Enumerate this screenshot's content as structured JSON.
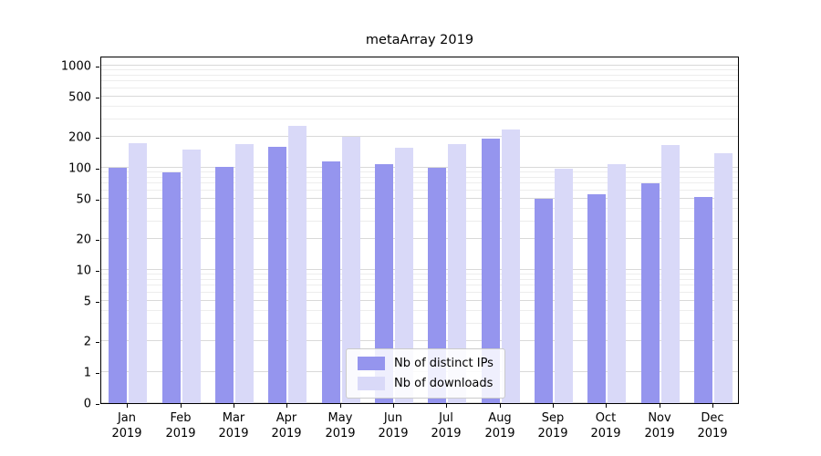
{
  "chart_data": {
    "type": "bar",
    "title": "metaArray 2019",
    "year": "2019",
    "categories": [
      "Jan",
      "Feb",
      "Mar",
      "Apr",
      "May",
      "Jun",
      "Jul",
      "Aug",
      "Sep",
      "Oct",
      "Nov",
      "Dec"
    ],
    "series": [
      {
        "name": "Nb of distinct IPs",
        "color": "#9595ee",
        "values": [
          100,
          90,
          102,
          160,
          115,
          108,
          100,
          195,
          50,
          55,
          70,
          52
        ]
      },
      {
        "name": "Nb of downloads",
        "color": "#d9d9f8",
        "values": [
          175,
          152,
          170,
          260,
          200,
          158,
          172,
          235,
          97,
          108,
          168,
          140
        ]
      }
    ],
    "yscale": "symlog",
    "yticks": [
      0,
      1,
      2,
      5,
      10,
      20,
      50,
      100,
      200,
      500,
      1000
    ],
    "ylim": [
      0,
      1000
    ],
    "grid": true,
    "legend_position": "lower center"
  }
}
